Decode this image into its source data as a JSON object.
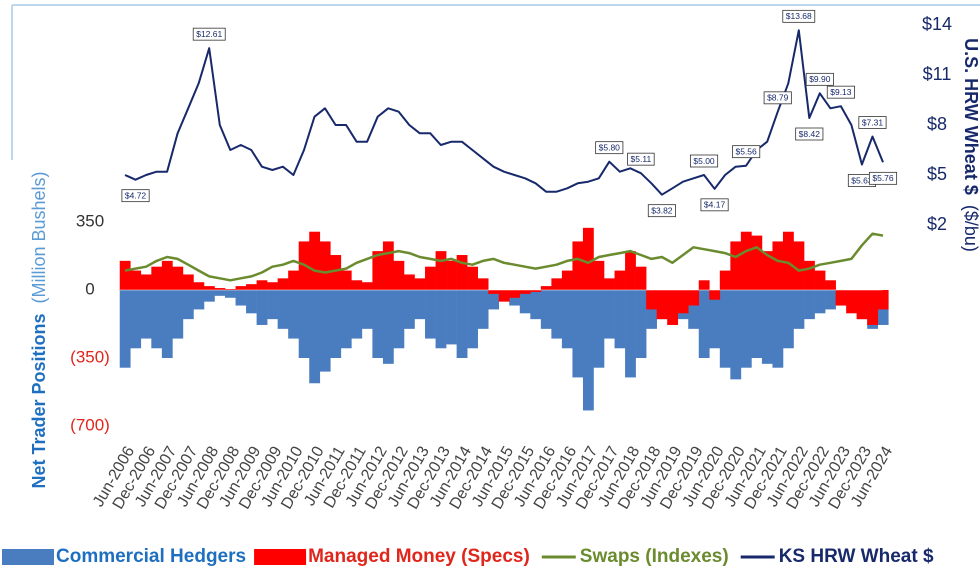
{
  "chart_data": {
    "type": "line",
    "ylabel": "Net Trader Positions",
    "ylabel_unit": "(Million Bushels)",
    "y2label": "U.S. HRW Wheat $",
    "y2label_unit": "($/bu)",
    "categories": [
      "Jun-2006",
      null,
      "Dec-2006",
      null,
      "Jun-2007",
      null,
      "Dec-2007",
      null,
      "Jun-2008",
      null,
      "Dec-2008",
      null,
      "Jun-2009",
      null,
      "Dec-2009",
      null,
      "Jun-2010",
      null,
      "Dec-2010",
      null,
      "Jun-2011",
      null,
      "Dec-2011",
      null,
      "Jun-2012",
      null,
      "Dec-2012",
      null,
      "Jun-2013",
      null,
      "Dec-2013",
      null,
      "Jun-2014",
      null,
      "Dec-2014",
      null,
      "Jun-2015",
      null,
      "Dec-2015",
      null,
      "Jun-2016",
      null,
      "Dec-2016",
      null,
      "Jun-2017",
      null,
      "Dec-2017",
      null,
      "Jun-2018",
      null,
      "Dec-2018",
      null,
      "Jun-2019",
      null,
      "Dec-2019",
      null,
      "Jun-2020",
      null,
      "Dec-2020",
      null,
      "Jun-2021",
      null,
      "Dec-2021",
      null,
      "Jun-2022",
      null,
      "Dec-2022",
      null,
      "Jun-2023",
      null,
      "Dec-2023",
      null,
      "Jun-2024"
    ],
    "ylim": [
      -700,
      350
    ],
    "yticks": [
      350,
      0,
      {
        "value": -350,
        "label": "(350)"
      },
      {
        "value": -700,
        "label": "(700)"
      }
    ],
    "y2lim": [
      2,
      14
    ],
    "y2ticks": [
      {
        "value": 14,
        "label": "$14"
      },
      {
        "value": 11,
        "label": "$11"
      },
      {
        "value": 8,
        "label": "$8"
      },
      {
        "value": 5,
        "label": "$5"
      },
      {
        "value": 2,
        "label": "$2"
      }
    ],
    "series": [
      {
        "name": "Commercial Hedgers",
        "type": "bar",
        "color": "#4a7dc0",
        "values": [
          -400,
          -300,
          -250,
          -300,
          -350,
          -250,
          -150,
          -100,
          -60,
          -30,
          -40,
          -80,
          -120,
          -180,
          -150,
          -200,
          -250,
          -350,
          -480,
          -420,
          -350,
          -300,
          -250,
          -200,
          -350,
          -380,
          -300,
          -200,
          -150,
          -250,
          -300,
          -280,
          -350,
          -300,
          -200,
          -100,
          -50,
          -80,
          -120,
          -150,
          -200,
          -250,
          -300,
          -450,
          -620,
          -400,
          -250,
          -300,
          -450,
          -350,
          -200,
          -150,
          -120,
          -150,
          -200,
          -350,
          -300,
          -400,
          -460,
          -400,
          -350,
          -380,
          -400,
          -300,
          -200,
          -150,
          -120,
          -100,
          -80,
          -60,
          -150,
          -200,
          -180
        ]
      },
      {
        "name": "Managed Money (Specs)",
        "type": "bar",
        "color": "#ff0000",
        "values": [
          150,
          100,
          80,
          120,
          150,
          120,
          80,
          40,
          20,
          10,
          5,
          20,
          30,
          50,
          40,
          60,
          100,
          250,
          300,
          250,
          180,
          100,
          50,
          40,
          200,
          250,
          150,
          80,
          60,
          120,
          200,
          150,
          180,
          120,
          60,
          -20,
          -60,
          -40,
          -20,
          -10,
          20,
          60,
          100,
          250,
          320,
          150,
          60,
          100,
          200,
          120,
          -100,
          -150,
          -180,
          -120,
          -80,
          50,
          -50,
          100,
          250,
          300,
          280,
          200,
          250,
          300,
          250,
          150,
          100,
          50,
          -80,
          -120,
          -150,
          -180,
          -100
        ]
      },
      {
        "name": "Swaps (Indexes)",
        "type": "line",
        "color": "#6b8b2f",
        "values": [
          100,
          110,
          120,
          150,
          170,
          160,
          130,
          100,
          70,
          60,
          50,
          60,
          70,
          90,
          120,
          130,
          150,
          130,
          100,
          90,
          100,
          110,
          140,
          160,
          180,
          190,
          200,
          190,
          170,
          160,
          150,
          160,
          140,
          130,
          150,
          160,
          140,
          130,
          120,
          110,
          120,
          130,
          150,
          160,
          140,
          170,
          180,
          190,
          200,
          180,
          160,
          170,
          140,
          180,
          220,
          210,
          200,
          190,
          170,
          200,
          220,
          180,
          150,
          140,
          100,
          110,
          130,
          140,
          150,
          160,
          230,
          290,
          280
        ]
      },
      {
        "name": "KS HRW Wheat $",
        "type": "line",
        "axis": "y2",
        "color": "#17296b",
        "values": [
          5.0,
          4.72,
          5.0,
          5.2,
          5.2,
          7.5,
          9.0,
          10.5,
          12.61,
          8.0,
          6.5,
          6.8,
          6.5,
          5.5,
          5.3,
          5.5,
          5.0,
          6.5,
          8.5,
          9.0,
          8.0,
          8.0,
          7.0,
          7.0,
          8.5,
          9.0,
          8.8,
          8.0,
          7.5,
          7.5,
          6.8,
          7.0,
          7.0,
          6.5,
          6.0,
          5.5,
          5.2,
          5.0,
          4.8,
          4.5,
          4.0,
          4.0,
          4.2,
          4.5,
          4.6,
          4.8,
          5.8,
          5.2,
          5.4,
          5.11,
          4.5,
          3.82,
          4.2,
          4.6,
          4.8,
          5.0,
          4.17,
          5.0,
          5.5,
          5.56,
          6.5,
          7.0,
          8.79,
          10.5,
          13.68,
          8.42,
          9.9,
          9.0,
          9.13,
          8.0,
          5.63,
          7.31,
          5.76
        ],
        "value_labels": [
          null,
          "$4.72",
          null,
          null,
          null,
          null,
          null,
          null,
          "$12.61",
          null,
          null,
          null,
          null,
          null,
          null,
          null,
          null,
          null,
          null,
          null,
          null,
          null,
          null,
          null,
          null,
          null,
          null,
          null,
          null,
          null,
          null,
          null,
          null,
          null,
          null,
          null,
          null,
          null,
          null,
          null,
          null,
          null,
          null,
          null,
          null,
          null,
          "$5.80",
          null,
          null,
          "$5.11",
          null,
          "$3.82",
          null,
          null,
          null,
          "$5.00",
          "$4.17",
          null,
          null,
          "$5.56",
          null,
          null,
          "$8.79",
          null,
          "$13.68",
          "$8.42",
          "$9.90",
          null,
          "$9.13",
          null,
          "$5.63",
          "$7.31",
          "$5.76"
        ]
      }
    ]
  }
}
